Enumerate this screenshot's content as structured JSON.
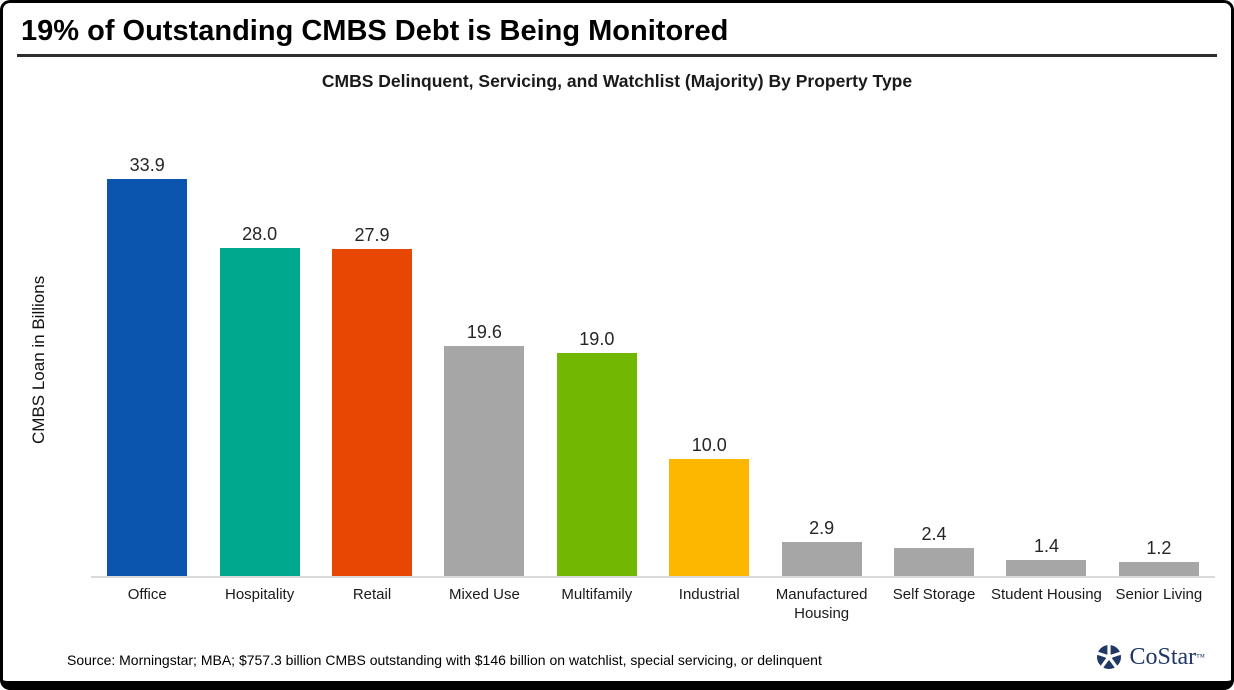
{
  "header": {
    "title": "19% of Outstanding CMBS Debt is Being Monitored"
  },
  "chart_data": {
    "type": "bar",
    "title": "CMBS Delinquent, Servicing, and Watchlist (Majority) By Property Type",
    "xlabel": "",
    "ylabel": "CMBS Loan in Billions",
    "ylim": [
      0,
      36
    ],
    "grid": false,
    "legend": false,
    "categories": [
      "Office",
      "Hospitality",
      "Retail",
      "Mixed Use",
      "Multifamily",
      "Industrial",
      "Manufactured Housing",
      "Self Storage",
      "Student Housing",
      "Senior Living"
    ],
    "values": [
      33.9,
      28.0,
      27.9,
      19.6,
      19.0,
      10.0,
      2.9,
      2.4,
      1.4,
      1.2
    ],
    "value_labels": [
      "33.9",
      "28.0",
      "27.9",
      "19.6",
      "19.0",
      "10.0",
      "2.9",
      "2.4",
      "1.4",
      "1.2"
    ],
    "bar_colors": [
      "#0b55ae",
      "#00a88d",
      "#e84703",
      "#a6a6a6",
      "#72b701",
      "#feb700",
      "#a6a6a6",
      "#a6a6a6",
      "#a6a6a6",
      "#a6a6a6"
    ]
  },
  "footer": {
    "source": "Source: Morningstar; MBA; $757.3 billion CMBS outstanding with $146 billion on watchlist, special servicing, or delinquent",
    "logo_text": "CoStar",
    "logo_tm": "TM",
    "logo_color": "#1f3864"
  }
}
